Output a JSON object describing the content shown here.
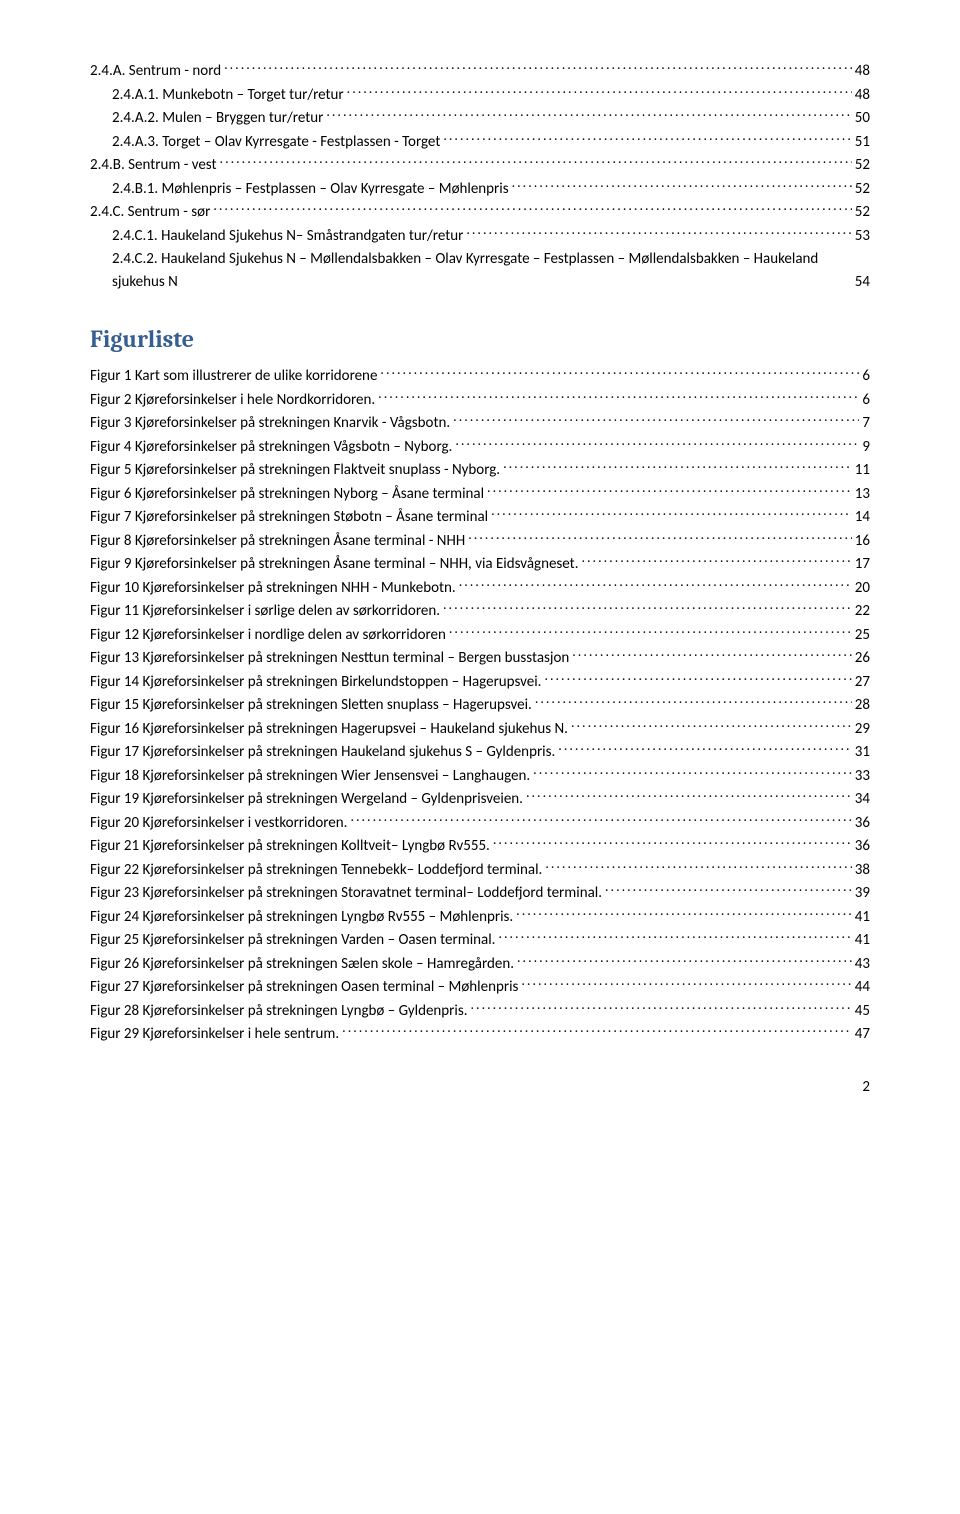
{
  "toc": [
    {
      "label": "2.4.A. Sentrum - nord",
      "page": "48",
      "indent": 0
    },
    {
      "label": "2.4.A.1. Munkebotn – Torget tur/retur",
      "page": "48",
      "indent": 1
    },
    {
      "label": "2.4.A.2. Mulen – Bryggen tur/retur",
      "page": "50",
      "indent": 1
    },
    {
      "label": "2.4.A.3. Torget – Olav Kyrresgate - Festplassen - Torget",
      "page": "51",
      "indent": 1
    },
    {
      "label": "2.4.B. Sentrum - vest",
      "page": "52",
      "indent": 0
    },
    {
      "label": "2.4.B.1. Møhlenpris – Festplassen – Olav Kyrresgate – Møhlenpris",
      "page": "52",
      "indent": 1
    },
    {
      "label": "2.4.C. Sentrum - sør",
      "page": "52",
      "indent": 0
    },
    {
      "label": "2.4.C.1. Haukeland Sjukehus N– Småstrandgaten tur/retur",
      "page": "53",
      "indent": 1
    },
    {
      "label": "2.4.C.2. Haukeland Sjukehus N – Møllendalsbakken – Olav Kyrresgate – Festplassen – Møllendalsbakken – Haukeland sjukehus N",
      "page": "54",
      "indent": 1
    }
  ],
  "figurliste": {
    "heading": "Figurliste",
    "items": [
      {
        "label": "Figur 1 Kart som illustrerer de ulike korridorene",
        "page": "6"
      },
      {
        "label": "Figur 2 Kjøreforsinkelser i hele Nordkorridoren.",
        "page": "6"
      },
      {
        "label": "Figur 3 Kjøreforsinkelser på strekningen Knarvik - Vågsbotn.",
        "page": "7"
      },
      {
        "label": "Figur 4 Kjøreforsinkelser på strekningen Vågsbotn – Nyborg.",
        "page": "9"
      },
      {
        "label": "Figur 5 Kjøreforsinkelser på strekningen Flaktveit snuplass - Nyborg.",
        "page": "11"
      },
      {
        "label": "Figur 6 Kjøreforsinkelser på strekningen Nyborg – Åsane terminal",
        "page": "13"
      },
      {
        "label": "Figur 7 Kjøreforsinkelser på strekningen Støbotn – Åsane terminal",
        "page": "14"
      },
      {
        "label": "Figur 8 Kjøreforsinkelser på strekningen Åsane terminal - NHH",
        "page": "16"
      },
      {
        "label": "Figur 9 Kjøreforsinkelser på strekningen Åsane terminal – NHH, via Eidsvågneset.",
        "page": "17"
      },
      {
        "label": "Figur 10 Kjøreforsinkelser på strekningen NHH - Munkebotn.",
        "page": "20"
      },
      {
        "label": "Figur 11 Kjøreforsinkelser i sørlige delen av sørkorridoren.",
        "page": "22"
      },
      {
        "label": "Figur 12 Kjøreforsinkelser i nordlige delen av sørkorridoren",
        "page": "25"
      },
      {
        "label": "Figur 13 Kjøreforsinkelser på strekningen Nesttun terminal – Bergen busstasjon",
        "page": "26"
      },
      {
        "label": "Figur 14 Kjøreforsinkelser på strekningen Birkelundstoppen – Hagerupsvei.",
        "page": "27"
      },
      {
        "label": "Figur 15 Kjøreforsinkelser på strekningen Sletten snuplass – Hagerupsvei.",
        "page": "28"
      },
      {
        "label": "Figur 16 Kjøreforsinkelser på strekningen Hagerupsvei – Haukeland sjukehus N.",
        "page": "29"
      },
      {
        "label": "Figur 17 Kjøreforsinkelser på strekningen Haukeland sjukehus S – Gyldenpris.",
        "page": "31"
      },
      {
        "label": "Figur 18 Kjøreforsinkelser på strekningen Wier Jensensvei – Langhaugen.",
        "page": "33"
      },
      {
        "label": "Figur 19 Kjøreforsinkelser på strekningen Wergeland – Gyldenprisveien.",
        "page": "34"
      },
      {
        "label": "Figur 20 Kjøreforsinkelser i vestkorridoren.",
        "page": "36"
      },
      {
        "label": "Figur 21 Kjøreforsinkelser på strekningen Kolltveit– Lyngbø Rv555.",
        "page": "36"
      },
      {
        "label": "Figur 22 Kjøreforsinkelser på strekningen Tennebekk– Loddefjord terminal.",
        "page": "38"
      },
      {
        "label": "Figur 23 Kjøreforsinkelser på strekningen Storavatnet terminal– Loddefjord terminal.",
        "page": "39"
      },
      {
        "label": "Figur 24 Kjøreforsinkelser på strekningen Lyngbø Rv555 – Møhlenpris.",
        "page": "41"
      },
      {
        "label": "Figur 25 Kjøreforsinkelser på strekningen Varden – Oasen terminal.",
        "page": "41"
      },
      {
        "label": "Figur 26 Kjøreforsinkelser på strekningen Sælen skole – Hamregården.",
        "page": "43"
      },
      {
        "label": "Figur 27 Kjøreforsinkelser på strekningen Oasen terminal – Møhlenpris",
        "page": "44"
      },
      {
        "label": "Figur 28 Kjøreforsinkelser på strekningen Lyngbø – Gyldenpris.",
        "page": "45"
      },
      {
        "label": "Figur 29 Kjøreforsinkelser i hele sentrum.",
        "page": "47"
      }
    ]
  },
  "pageNumber": "2"
}
